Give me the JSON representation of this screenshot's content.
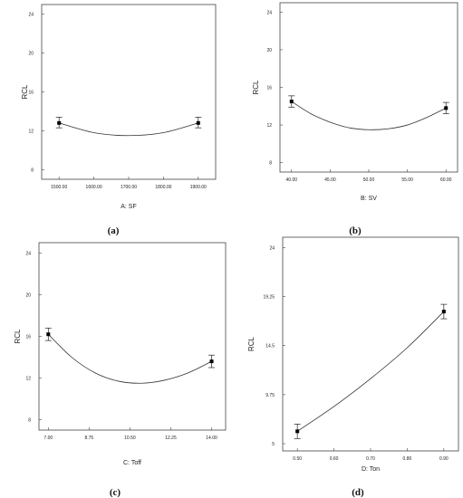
{
  "chart_data": [
    {
      "type": "line",
      "panel_label": "(a)",
      "xlabel": "A: SF",
      "ylabel": "RCL",
      "xlim": [
        1450,
        1950
      ],
      "ylim": [
        7,
        25
      ],
      "xticks": [
        1500,
        1600,
        1700,
        1800,
        1900
      ],
      "xtick_labels": [
        "1500.00",
        "1600.00",
        "1700.00",
        "1800.00",
        "1900.00"
      ],
      "yticks": [
        8,
        12,
        16,
        20,
        24
      ],
      "ytick_labels": [
        "8",
        "12",
        "16",
        "20",
        "24"
      ],
      "curve": {
        "x": [
          1500,
          1600,
          1700,
          1800,
          1900
        ],
        "y": [
          12.8,
          11.8,
          11.5,
          11.8,
          12.8
        ]
      },
      "points": [
        {
          "x": 1500,
          "y": 12.8,
          "err_low": 12.3,
          "err_high": 13.4
        },
        {
          "x": 1900,
          "y": 12.8,
          "err_low": 12.3,
          "err_high": 13.4
        }
      ]
    },
    {
      "type": "line",
      "panel_label": "(b)",
      "xlabel": "B: SV",
      "ylabel": "RCL",
      "xlim": [
        38.5,
        61.5
      ],
      "ylim": [
        7,
        25
      ],
      "xticks": [
        40,
        45,
        50,
        55,
        60
      ],
      "xtick_labels": [
        "40.00",
        "45.00",
        "50.00",
        "55.00",
        "60.00"
      ],
      "yticks": [
        8,
        12,
        16,
        20,
        24
      ],
      "ytick_labels": [
        "8",
        "12",
        "16",
        "20",
        "24"
      ],
      "curve": {
        "x": [
          40,
          42.5,
          45,
          47.5,
          50,
          52.5,
          55,
          57.5,
          60
        ],
        "y": [
          14.5,
          13.2,
          12.3,
          11.7,
          11.5,
          11.6,
          12.0,
          12.8,
          13.8
        ]
      },
      "points": [
        {
          "x": 40,
          "y": 14.5,
          "err_low": 13.9,
          "err_high": 15.1
        },
        {
          "x": 60,
          "y": 13.8,
          "err_low": 13.2,
          "err_high": 14.4
        }
      ]
    },
    {
      "type": "line",
      "panel_label": "(c)",
      "xlabel": "C: Toff",
      "ylabel": "RCL",
      "xlim": [
        6.6,
        14.6
      ],
      "ylim": [
        7,
        25
      ],
      "xticks": [
        7,
        8.75,
        10.5,
        12.25,
        14
      ],
      "xtick_labels": [
        "7.00",
        "8.75",
        "10.50",
        "12.25",
        "14.00"
      ],
      "yticks": [
        8,
        12,
        16,
        20,
        24
      ],
      "ytick_labels": [
        "8",
        "12",
        "16",
        "20",
        "24"
      ],
      "curve": {
        "x": [
          7,
          8,
          9,
          10,
          11,
          12,
          13,
          14
        ],
        "y": [
          16.2,
          14.0,
          12.5,
          11.7,
          11.5,
          11.8,
          12.5,
          13.6
        ]
      },
      "points": [
        {
          "x": 7,
          "y": 16.2,
          "err_low": 15.6,
          "err_high": 16.8
        },
        {
          "x": 14,
          "y": 13.6,
          "err_low": 13.0,
          "err_high": 14.2
        }
      ]
    },
    {
      "type": "line",
      "panel_label": "(d)",
      "xlabel": "D: Ton",
      "ylabel": "RCL",
      "xlim": [
        0.46,
        0.94
      ],
      "ylim": [
        4.3,
        25
      ],
      "xticks": [
        0.5,
        0.6,
        0.7,
        0.8,
        0.9
      ],
      "xtick_labels": [
        "0.50",
        "0.60",
        "0.70",
        "0.80",
        "0.90"
      ],
      "yticks": [
        5,
        9.75,
        14.5,
        19.25,
        24
      ],
      "ytick_labels": [
        "5",
        "9.75",
        "14.5",
        "19.25",
        "24"
      ],
      "curve": {
        "x": [
          0.5,
          0.6,
          0.7,
          0.8,
          0.9
        ],
        "y": [
          6.2,
          8.6,
          11.3,
          14.3,
          17.8
        ]
      },
      "points": [
        {
          "x": 0.5,
          "y": 6.2,
          "err_low": 5.5,
          "err_high": 6.9
        },
        {
          "x": 0.9,
          "y": 17.8,
          "err_low": 17.1,
          "err_high": 18.5
        }
      ]
    }
  ]
}
